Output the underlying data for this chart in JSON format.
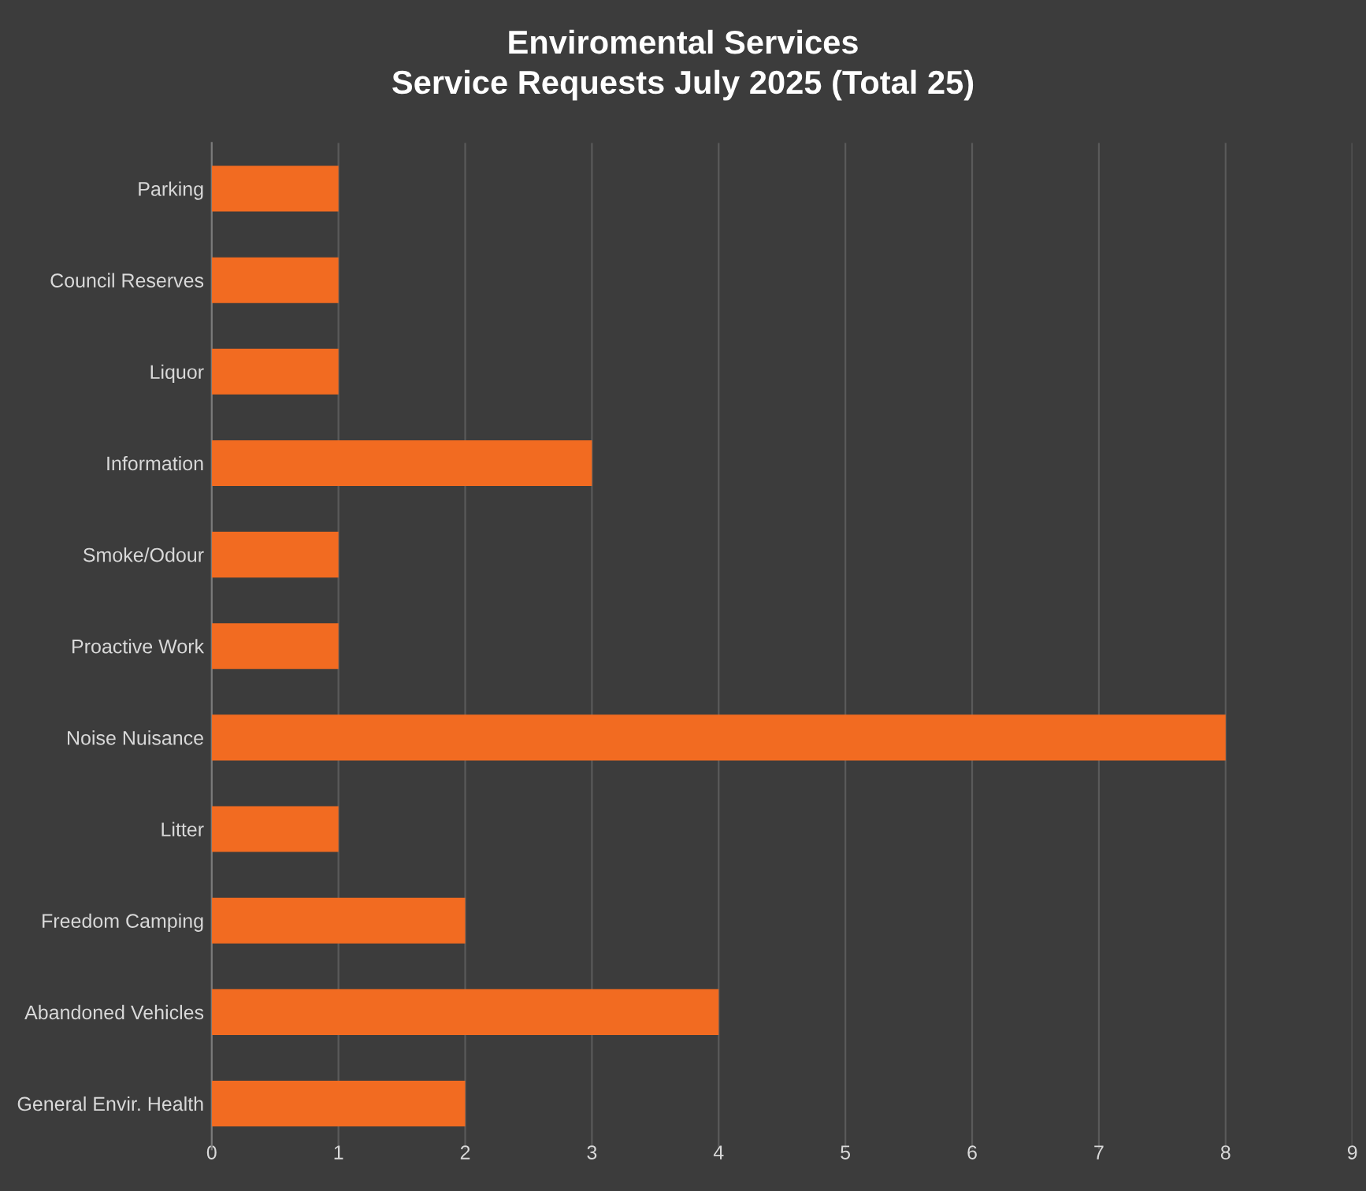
{
  "chart_data": {
    "type": "bar",
    "orientation": "horizontal",
    "title": "Enviromental Services\nService Requests July 2025 (Total 25)",
    "categories": [
      "Parking",
      "Council Reserves",
      "Liquor",
      "Information",
      "Smoke/Odour",
      "Proactive Work",
      "Noise Nuisance",
      "Litter",
      "Freedom Camping",
      "Abandoned Vehicles",
      "General Envir. Health"
    ],
    "values": [
      1,
      1,
      1,
      3,
      1,
      1,
      8,
      1,
      2,
      4,
      2
    ],
    "color": "#f26b21",
    "xlim": [
      0,
      9
    ],
    "xticks": [
      0,
      1,
      2,
      3,
      4,
      5,
      6,
      7,
      8,
      9
    ],
    "grid": "x",
    "legend": false
  }
}
